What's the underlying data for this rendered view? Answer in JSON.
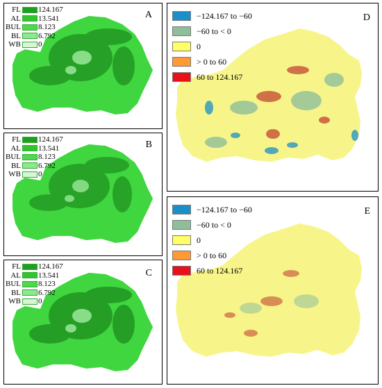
{
  "panels": [
    {
      "id": "A",
      "label": "A"
    },
    {
      "id": "B",
      "label": "B"
    },
    {
      "id": "C",
      "label": "C"
    },
    {
      "id": "D",
      "label": "D"
    },
    {
      "id": "E",
      "label": "E"
    }
  ],
  "landuse_legend": [
    {
      "code": "FL",
      "value": "124.167",
      "color": "#1f9e1f"
    },
    {
      "code": "AL",
      "value": "13.541",
      "color": "#2fc52f"
    },
    {
      "code": "BUL",
      "value": "8.123",
      "color": "#4fd84f"
    },
    {
      "code": "BL",
      "value": "6.792",
      "color": "#8ee88e"
    },
    {
      "code": "WB",
      "value": "0",
      "color": "#d6f6d6"
    }
  ],
  "change_legend": [
    {
      "label": "−124.167 to −60",
      "color": "#1b8fc7"
    },
    {
      "label": "−60 to < 0",
      "color": "#8fbf9a"
    },
    {
      "label": "0",
      "color": "#ffff66"
    },
    {
      "label": "> 0 to 60",
      "color": "#ff9933"
    },
    {
      "label": "60 to 124.167",
      "color": "#e8101a"
    }
  ],
  "map_colors": {
    "green_base": "#3fd63f",
    "green_dark": "#1e8f1e",
    "green_light": "#9be89b",
    "yellow_base": "#f7f58a",
    "change_red": "#c0392b",
    "change_blue": "#1b8fc7",
    "change_teal": "#8fbf9a"
  }
}
